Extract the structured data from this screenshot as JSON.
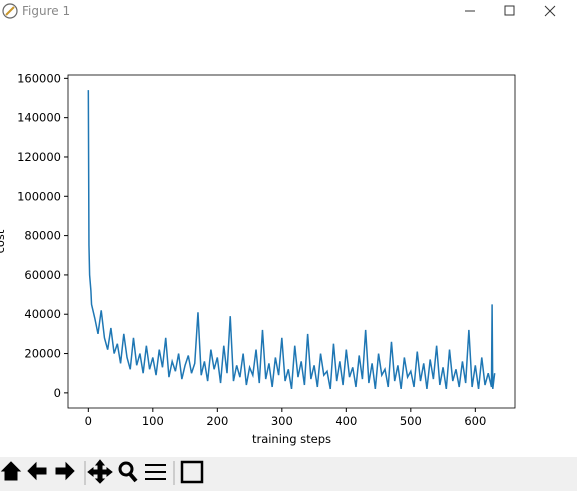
{
  "window": {
    "title": "Figure 1"
  },
  "chart_data": {
    "type": "line",
    "xlabel": "training steps",
    "ylabel": "cost",
    "color": "#1f77b4",
    "xlim": [
      -31.5,
      661.5
    ],
    "ylim": [
      -7700,
      161700
    ],
    "xticks": [
      0,
      100,
      200,
      300,
      400,
      500,
      600
    ],
    "yticks": [
      0,
      20000,
      40000,
      60000,
      80000,
      100000,
      120000,
      140000,
      160000
    ],
    "x": [
      0,
      1,
      2,
      4,
      5,
      10,
      15,
      20,
      25,
      30,
      35,
      40,
      45,
      50,
      55,
      60,
      65,
      70,
      75,
      80,
      85,
      90,
      95,
      100,
      105,
      110,
      115,
      120,
      125,
      130,
      135,
      140,
      145,
      150,
      155,
      160,
      165,
      170,
      175,
      180,
      185,
      190,
      195,
      200,
      205,
      210,
      215,
      220,
      225,
      230,
      235,
      240,
      245,
      250,
      255,
      260,
      265,
      270,
      275,
      280,
      285,
      290,
      295,
      300,
      305,
      310,
      315,
      320,
      325,
      330,
      335,
      340,
      345,
      350,
      355,
      360,
      365,
      370,
      375,
      380,
      385,
      390,
      395,
      400,
      405,
      410,
      415,
      420,
      425,
      430,
      435,
      440,
      445,
      450,
      455,
      460,
      465,
      470,
      475,
      480,
      485,
      490,
      495,
      500,
      505,
      510,
      515,
      520,
      525,
      530,
      535,
      540,
      545,
      550,
      555,
      560,
      565,
      570,
      575,
      580,
      585,
      590,
      595,
      600,
      605,
      610,
      615,
      620,
      625,
      626,
      627,
      630
    ],
    "values": [
      154000,
      75000,
      60000,
      52000,
      45000,
      38000,
      30000,
      42000,
      28000,
      22000,
      33000,
      20000,
      25000,
      15000,
      30000,
      18000,
      12000,
      28000,
      14000,
      20000,
      10000,
      24000,
      12000,
      18000,
      9000,
      22000,
      13000,
      28000,
      8000,
      16000,
      11000,
      20000,
      7000,
      14000,
      19000,
      10000,
      15000,
      41000,
      9000,
      16000,
      6000,
      22000,
      12000,
      18000,
      5000,
      24000,
      10000,
      39000,
      6000,
      14000,
      8000,
      20000,
      4000,
      13000,
      9000,
      22000,
      5000,
      32000,
      7000,
      15000,
      3000,
      18000,
      9000,
      28000,
      6000,
      12000,
      2000,
      24000,
      8000,
      16000,
      4000,
      30000,
      7000,
      14000,
      3000,
      20000,
      9000,
      11000,
      2000,
      25000,
      6000,
      16000,
      4000,
      22000,
      8000,
      13000,
      3000,
      19000,
      7000,
      32000,
      5000,
      15000,
      2000,
      20000,
      9000,
      12000,
      3000,
      26000,
      6000,
      14000,
      2000,
      18000,
      8000,
      11000,
      3000,
      21000,
      6000,
      15000,
      2000,
      17000,
      7000,
      24000,
      4000,
      13000,
      2000,
      22000,
      6000,
      12000,
      3000,
      16000,
      5000,
      32000,
      3000,
      14000,
      2000,
      18000,
      4000,
      10000,
      3000,
      45000,
      2000,
      10000
    ]
  }
}
